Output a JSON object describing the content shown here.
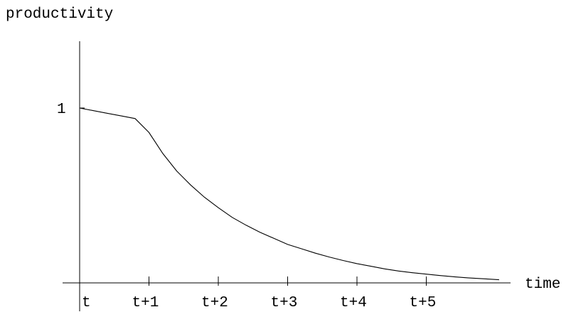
{
  "chart_data": {
    "type": "line",
    "title": "",
    "xlabel": "time",
    "ylabel": "productivity",
    "x_ticks": [
      "t",
      "t+1",
      "t+2",
      "t+3",
      "t+4",
      "t+5"
    ],
    "y_ticks": [
      {
        "value": 1,
        "label": "1"
      }
    ],
    "xlim": [
      0,
      6.05
    ],
    "ylim": [
      0,
      1.36
    ],
    "grid": false,
    "legend": "none",
    "series": [
      {
        "x": [
          0,
          0.2,
          0.4,
          0.6,
          0.8,
          1.0,
          1.2,
          1.4,
          1.6,
          1.8,
          2.0,
          2.2,
          2.4,
          2.6,
          2.8,
          3.0,
          3.2,
          3.4,
          3.6,
          3.8,
          4.0,
          4.2,
          4.4,
          4.6,
          4.8,
          5.0,
          5.2,
          5.4,
          5.6,
          5.8,
          6.05
        ],
        "y": [
          1.0,
          0.985,
          0.97,
          0.955,
          0.94,
          0.86,
          0.74,
          0.64,
          0.56,
          0.49,
          0.43,
          0.375,
          0.33,
          0.29,
          0.255,
          0.22,
          0.195,
          0.17,
          0.148,
          0.128,
          0.11,
          0.095,
          0.08,
          0.068,
          0.058,
          0.05,
          0.042,
          0.035,
          0.029,
          0.024,
          0.018
        ]
      }
    ]
  }
}
